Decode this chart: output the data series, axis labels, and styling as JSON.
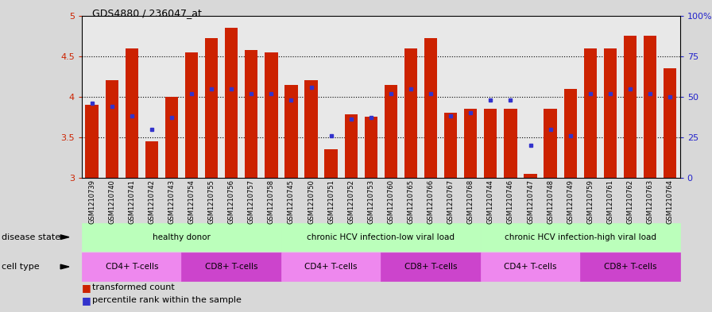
{
  "title": "GDS4880 / 236047_at",
  "samples": [
    "GSM1210739",
    "GSM1210740",
    "GSM1210741",
    "GSM1210742",
    "GSM1210743",
    "GSM1210754",
    "GSM1210755",
    "GSM1210756",
    "GSM1210757",
    "GSM1210758",
    "GSM1210745",
    "GSM1210750",
    "GSM1210751",
    "GSM1210752",
    "GSM1210753",
    "GSM1210760",
    "GSM1210765",
    "GSM1210766",
    "GSM1210767",
    "GSM1210768",
    "GSM1210744",
    "GSM1210746",
    "GSM1210747",
    "GSM1210748",
    "GSM1210749",
    "GSM1210759",
    "GSM1210761",
    "GSM1210762",
    "GSM1210763",
    "GSM1210764"
  ],
  "bar_heights": [
    3.9,
    4.2,
    4.6,
    3.45,
    4.0,
    4.55,
    4.72,
    4.85,
    4.58,
    4.55,
    4.15,
    4.2,
    3.35,
    3.78,
    3.75,
    4.15,
    4.6,
    4.72,
    3.8,
    3.85,
    3.85,
    3.85,
    3.05,
    3.85,
    4.1,
    4.6,
    4.6,
    4.75,
    4.75,
    4.35
  ],
  "percentile_values": [
    46,
    44,
    38,
    30,
    37,
    52,
    55,
    55,
    52,
    52,
    48,
    56,
    26,
    36,
    37,
    52,
    55,
    52,
    38,
    40,
    48,
    48,
    20,
    30,
    26,
    52,
    52,
    55,
    52,
    50
  ],
  "ylim_low": 3.0,
  "ylim_high": 5.0,
  "yticks": [
    3.0,
    3.5,
    4.0,
    4.5,
    5.0
  ],
  "ytick_labels": [
    "3",
    "3.5",
    "4",
    "4.5",
    "5"
  ],
  "right_yticks": [
    0,
    25,
    50,
    75,
    100
  ],
  "right_ytick_labels": [
    "0",
    "25",
    "50",
    "75",
    "100%"
  ],
  "bar_color": "#cc2200",
  "dot_color": "#3333cc",
  "plot_bg_color": "#e8e8e8",
  "fig_bg_color": "#d8d8d8",
  "disease_groups": [
    {
      "label": "healthy donor",
      "start": 0,
      "end": 9
    },
    {
      "label": "chronic HCV infection-low viral load",
      "start": 10,
      "end": 19
    },
    {
      "label": "chronic HCV infection-high viral load",
      "start": 20,
      "end": 29
    }
  ],
  "disease_row_color": "#bbffbb",
  "cell_type_groups": [
    {
      "label": "CD4+ T-cells",
      "start": 0,
      "end": 4
    },
    {
      "label": "CD8+ T-cells",
      "start": 5,
      "end": 9
    },
    {
      "label": "CD4+ T-cells",
      "start": 10,
      "end": 14
    },
    {
      "label": "CD8+ T-cells",
      "start": 15,
      "end": 19
    },
    {
      "label": "CD4+ T-cells",
      "start": 20,
      "end": 24
    },
    {
      "label": "CD8+ T-cells",
      "start": 25,
      "end": 29
    }
  ],
  "cd4_color": "#ee88ee",
  "cd8_color": "#cc44cc",
  "disease_state_label": "disease state",
  "cell_type_label": "cell type"
}
